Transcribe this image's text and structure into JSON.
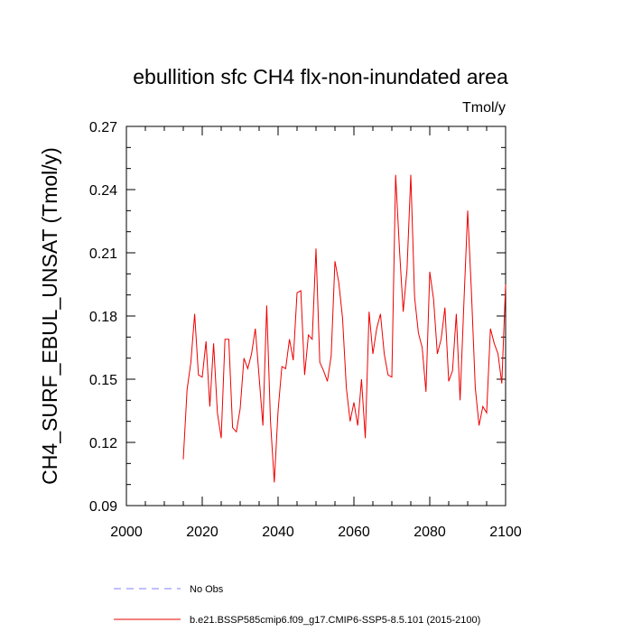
{
  "chart_data": {
    "type": "line",
    "title": "ebullition sfc CH4 flx-non-inundated area",
    "units": "Tmol/y",
    "ylabel": "CH4_SURF_EBUL_UNSAT  (Tmol/y)",
    "xlabel": "",
    "xlim": [
      2000,
      2100
    ],
    "ylim": [
      0.09,
      0.27
    ],
    "xticks": [
      "2000",
      "2020",
      "2040",
      "2060",
      "2080",
      "2100"
    ],
    "yticks": [
      "0.09",
      "0.12",
      "0.15",
      "0.18",
      "0.21",
      "0.24",
      "0.27"
    ],
    "grid": false,
    "legend_position": "bottom",
    "legend": [
      {
        "name": "No Obs",
        "color": "#8080ff",
        "dash": true
      },
      {
        "name": "b.e21.BSSP585cmip6.f09_g17.CMIP6-SSP5-8.5.101 (2015-2100)",
        "color": "#ee0000",
        "dash": false
      }
    ],
    "series": [
      {
        "name": "b.e21.BSSP585cmip6.f09_g17.CMIP6-SSP5-8.5.101 (2015-2100)",
        "color": "#ee0000",
        "x": [
          2015,
          2016,
          2017,
          2018,
          2019,
          2020,
          2021,
          2022,
          2023,
          2024,
          2025,
          2026,
          2027,
          2028,
          2029,
          2030,
          2031,
          2032,
          2033,
          2034,
          2035,
          2036,
          2037,
          2038,
          2039,
          2040,
          2041,
          2042,
          2043,
          2044,
          2045,
          2046,
          2047,
          2048,
          2049,
          2050,
          2051,
          2052,
          2053,
          2054,
          2055,
          2056,
          2057,
          2058,
          2059,
          2060,
          2061,
          2062,
          2063,
          2064,
          2065,
          2066,
          2067,
          2068,
          2069,
          2070,
          2071,
          2072,
          2073,
          2074,
          2075,
          2076,
          2077,
          2078,
          2079,
          2080,
          2081,
          2082,
          2083,
          2084,
          2085,
          2086,
          2087,
          2088,
          2089,
          2090,
          2091,
          2092,
          2093,
          2094,
          2095,
          2096,
          2097,
          2098,
          2099,
          2100
        ],
        "y": [
          0.112,
          0.145,
          0.158,
          0.181,
          0.152,
          0.151,
          0.168,
          0.137,
          0.167,
          0.134,
          0.122,
          0.169,
          0.169,
          0.127,
          0.125,
          0.136,
          0.16,
          0.155,
          0.162,
          0.174,
          0.151,
          0.128,
          0.185,
          0.13,
          0.101,
          0.135,
          0.156,
          0.155,
          0.169,
          0.159,
          0.191,
          0.192,
          0.152,
          0.171,
          0.169,
          0.212,
          0.158,
          0.154,
          0.149,
          0.161,
          0.206,
          0.196,
          0.179,
          0.146,
          0.13,
          0.139,
          0.128,
          0.15,
          0.122,
          0.182,
          0.162,
          0.174,
          0.181,
          0.162,
          0.152,
          0.151,
          0.247,
          0.212,
          0.182,
          0.202,
          0.247,
          0.189,
          0.172,
          0.165,
          0.144,
          0.201,
          0.188,
          0.162,
          0.169,
          0.184,
          0.149,
          0.154,
          0.181,
          0.14,
          0.186,
          0.23,
          0.191,
          0.146,
          0.128,
          0.137,
          0.134,
          0.174,
          0.167,
          0.162,
          0.148,
          0.195
        ]
      }
    ]
  }
}
